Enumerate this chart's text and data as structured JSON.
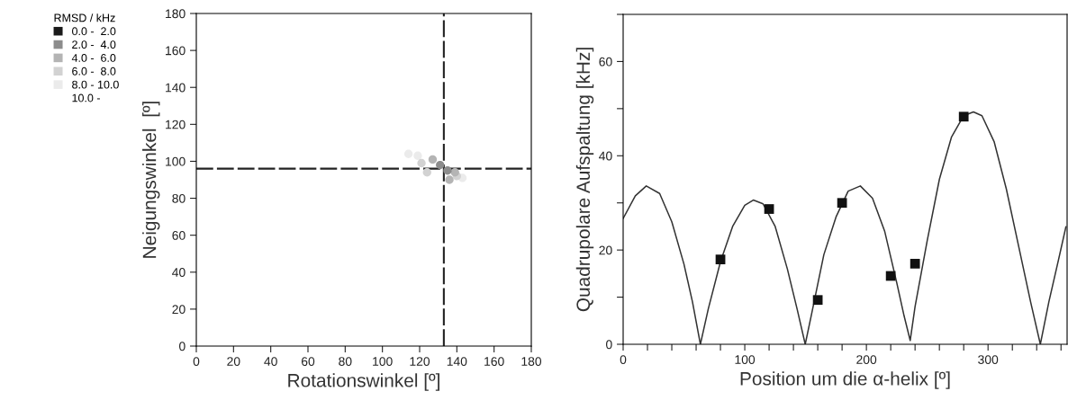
{
  "chart_data": [
    {
      "type": "scatter",
      "xlabel": "Rotationswinkel [º]",
      "ylabel": "Neigungswinkel  [º]",
      "legend_title": "RMSD / kHz",
      "legend": "left",
      "marker": "circle",
      "grid": false,
      "xlim": [
        0,
        180
      ],
      "xticks": [
        0,
        20,
        40,
        60,
        80,
        100,
        120,
        140,
        160,
        180
      ],
      "ylim": [
        0,
        180
      ],
      "yticks": [
        0,
        20,
        40,
        60,
        80,
        100,
        120,
        140,
        160,
        180
      ],
      "series": [
        {
          "name": "0.0 -  2.0",
          "color": "#1a1a1a"
        },
        {
          "name": "2.0 -  4.0",
          "color": "#8c8c8c",
          "x": [
            131,
            135
          ],
          "values": [
            98,
            95
          ]
        },
        {
          "name": "4.0 -  6.0",
          "color": "#b4b4b4",
          "x": [
            127,
            139,
            136
          ],
          "values": [
            101,
            94,
            90
          ]
        },
        {
          "name": "6.0 -  8.0",
          "color": "#d2d2d2",
          "x": [
            121,
            140,
            124
          ],
          "values": [
            99,
            92,
            94
          ]
        },
        {
          "name": "8.0 - 10.0",
          "color": "#ebebeb",
          "x": [
            114,
            119,
            143
          ],
          "values": [
            104,
            103,
            91
          ]
        },
        {
          "name": "10.0 -"
        }
      ],
      "ref_lines": [
        {
          "axis": "x",
          "value": 133,
          "color": "#222222",
          "line_style": "dashed"
        },
        {
          "axis": "y",
          "value": 96,
          "color": "#222222",
          "line_style": "dashed"
        }
      ]
    },
    {
      "type": "line",
      "xlabel": "Position um die α-helix [º]",
      "ylabel": "Quadrupolare Aufspaltung [kHz]",
      "grid": false,
      "xlim": [
        0,
        365
      ],
      "xticks": [
        0,
        {
          "value": 20,
          "label": null
        },
        {
          "value": 40,
          "label": null
        },
        {
          "value": 60,
          "label": null
        },
        {
          "value": 80,
          "label": null
        },
        100,
        {
          "value": 120,
          "label": null
        },
        {
          "value": 140,
          "label": null
        },
        {
          "value": 160,
          "label": null
        },
        {
          "value": 180,
          "label": null
        },
        200,
        {
          "value": 220,
          "label": null
        },
        {
          "value": 240,
          "label": null
        },
        {
          "value": 260,
          "label": null
        },
        {
          "value": 280,
          "label": null
        },
        300,
        {
          "value": 320,
          "label": null
        },
        {
          "value": 340,
          "label": null
        },
        {
          "value": 360,
          "label": null
        }
      ],
      "ylim": [
        0,
        70
      ],
      "yticks": [
        0,
        {
          "value": 10,
          "label": null
        },
        20,
        {
          "value": 30,
          "label": null
        },
        40,
        {
          "value": 50,
          "label": null
        },
        60,
        {
          "value": 70,
          "label": null
        }
      ],
      "series": [
        {
          "type": "line",
          "color": "#333333",
          "marker": "none",
          "line_style": "solid",
          "x": [
            0,
            10,
            19,
            30,
            40,
            50,
            57,
            63.5,
            70,
            80,
            90,
            100,
            107,
            115,
            125,
            135,
            143,
            149.7,
            155,
            165,
            175,
            185,
            195,
            205,
            215,
            225,
            231,
            236,
            240,
            250,
            260,
            270,
            280,
            288,
            295,
            305,
            315,
            325,
            335,
            343,
            350,
            358,
            364
          ],
          "values": [
            26.7,
            31.5,
            33.6,
            32,
            26,
            17,
            9,
            0,
            7.5,
            17.5,
            25,
            29.5,
            30.6,
            29.8,
            25,
            16,
            7.5,
            0,
            6.5,
            19,
            27,
            32.5,
            33.6,
            31,
            24,
            13,
            6,
            0.8,
            8,
            22,
            35,
            44,
            48.5,
            49.3,
            48.5,
            43,
            33,
            21,
            9,
            0,
            9,
            18,
            24.9
          ]
        },
        {
          "type": "scatter",
          "color": "#111111",
          "marker": "square",
          "x": [
            80,
            120,
            160,
            180,
            220,
            240,
            280
          ],
          "values": [
            18,
            28.7,
            9.4,
            30,
            14.5,
            17.1,
            48.3
          ]
        }
      ]
    }
  ]
}
